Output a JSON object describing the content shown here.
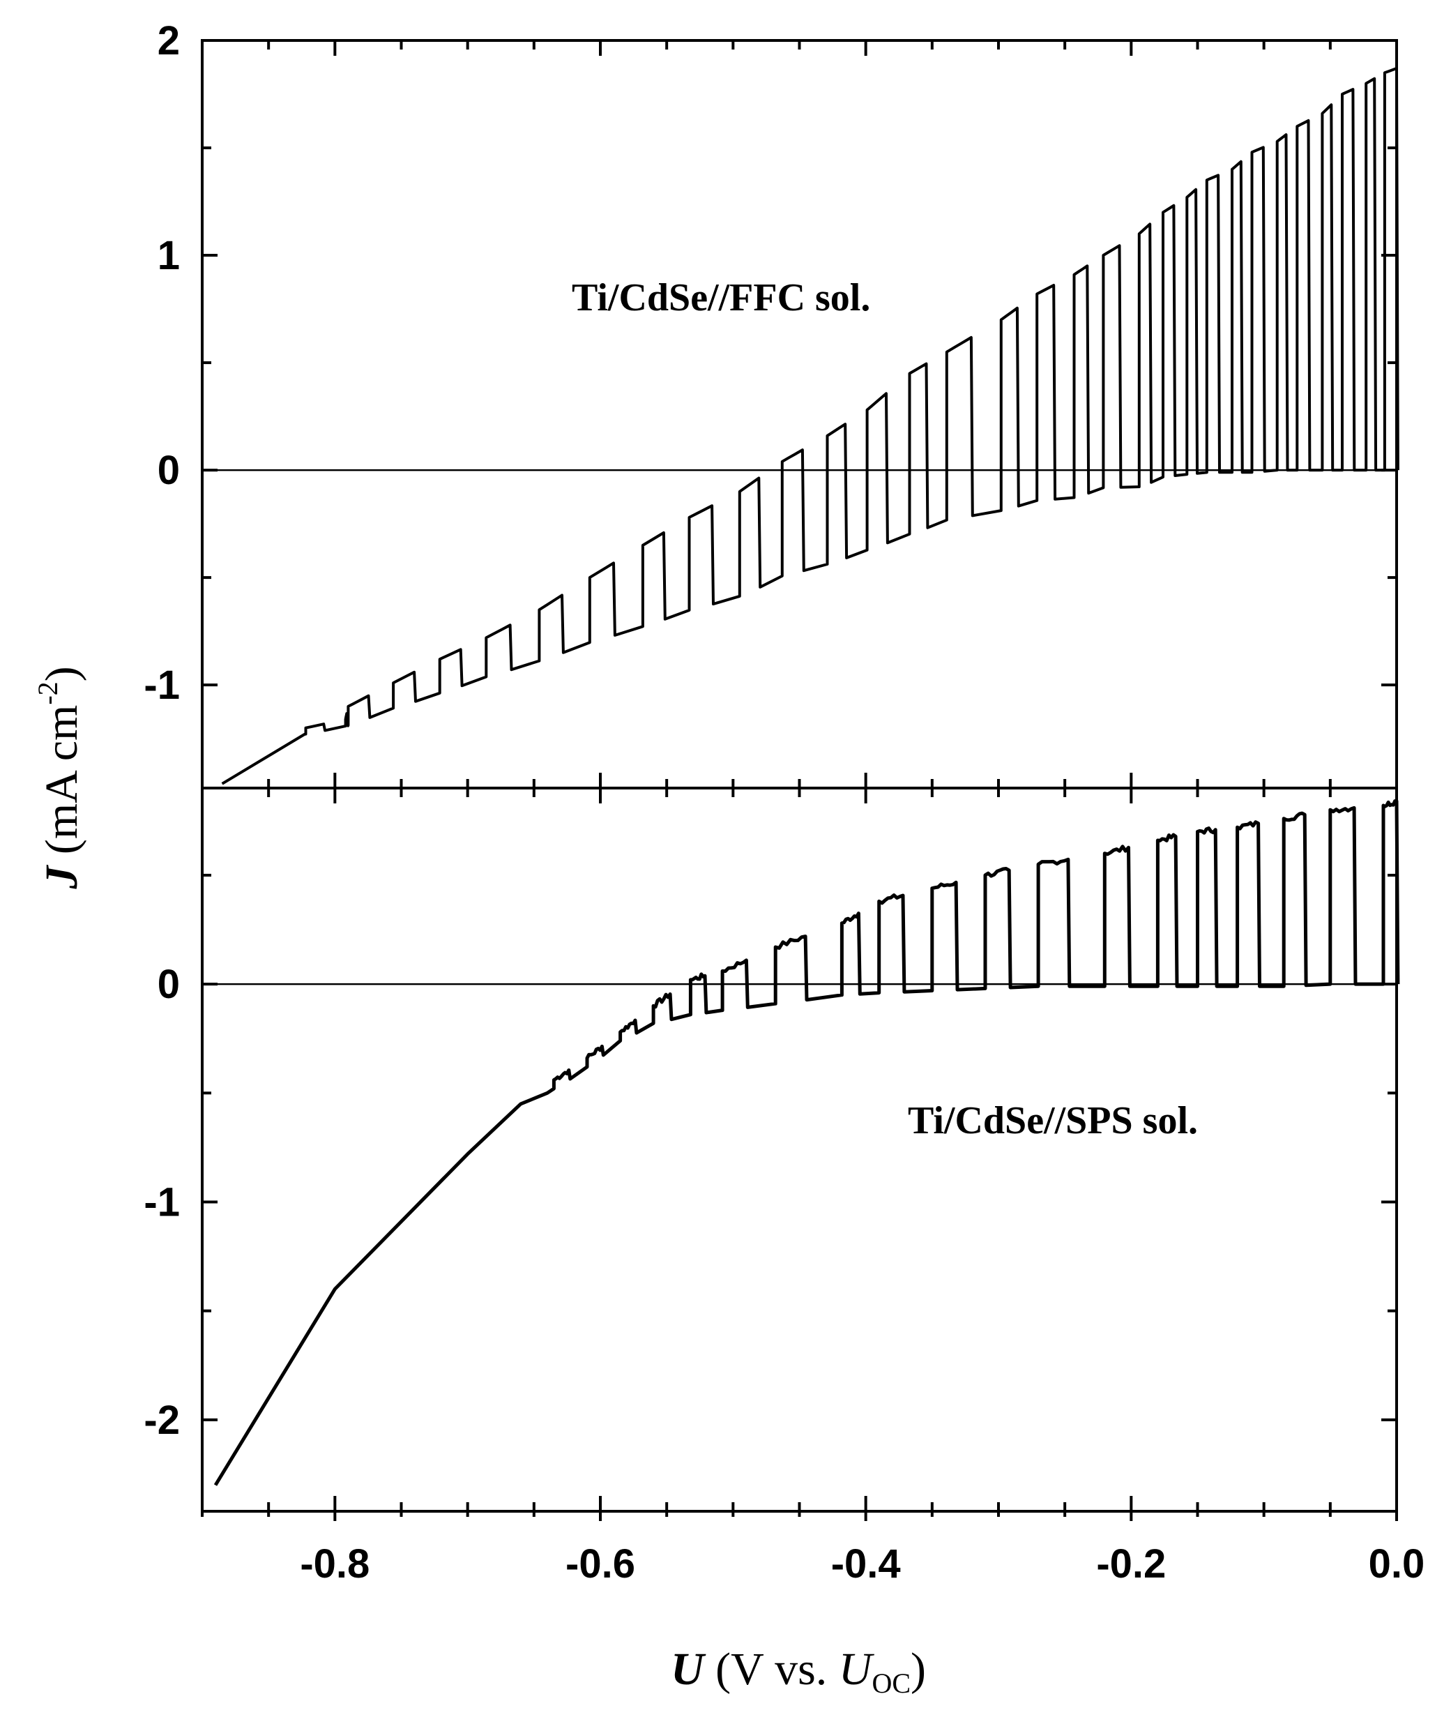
{
  "chart_data": [
    {
      "type": "line",
      "panel": "top",
      "annotation": "Ti/CdSe//FFC sol.",
      "xlim": [
        -0.9,
        0.0
      ],
      "ylim": [
        -1.48,
        2.0
      ],
      "yticks": [
        {
          "value": 2,
          "label": "2"
        },
        {
          "value": 1,
          "label": "1"
        },
        {
          "value": 0,
          "label": "0"
        },
        {
          "value": -1,
          "label": "-1"
        }
      ],
      "reference_line": 0,
      "grid": false,
      "series": [
        {
          "dark": [
            [
              -0.885,
              -1.46
            ],
            [
              -0.823,
              -1.23
            ],
            [
              -0.791,
              -1.19
            ],
            [
              -0.757,
              -1.11
            ],
            [
              -0.722,
              -1.04
            ],
            [
              -0.685,
              -0.96
            ],
            [
              -0.647,
              -0.89
            ],
            [
              -0.607,
              -0.8
            ],
            [
              -0.569,
              -0.73
            ],
            [
              -0.532,
              -0.65
            ],
            [
              -0.496,
              -0.59
            ],
            [
              -0.462,
              -0.49
            ],
            [
              -0.43,
              -0.44
            ],
            [
              -0.398,
              -0.37
            ],
            [
              -0.368,
              -0.3
            ],
            [
              -0.338,
              -0.23
            ],
            [
              -0.299,
              -0.19
            ],
            [
              -0.27,
              -0.14
            ],
            [
              -0.244,
              -0.13
            ],
            [
              -0.22,
              -0.08
            ],
            [
              -0.195,
              -0.08
            ],
            [
              -0.175,
              -0.03
            ],
            [
              -0.159,
              -0.02
            ],
            [
              -0.142,
              -0.01
            ],
            [
              -0.125,
              -0.01
            ],
            [
              -0.108,
              -0.01
            ],
            [
              -0.091,
              0.0
            ],
            [
              -0.074,
              0.0
            ],
            [
              -0.057,
              0.0
            ],
            [
              -0.04,
              0.0
            ],
            [
              -0.024,
              0.0
            ],
            [
              -0.008,
              0.0
            ],
            [
              0.0,
              0.0
            ]
          ],
          "light": [
            [
              -0.822,
              -1.2
            ],
            [
              -0.792,
              -1.16
            ],
            [
              -0.79,
              -1.1
            ],
            [
              -0.756,
              -0.99
            ],
            [
              -0.721,
              -0.88
            ],
            [
              -0.686,
              -0.78
            ],
            [
              -0.646,
              -0.65
            ],
            [
              -0.608,
              -0.5
            ],
            [
              -0.568,
              -0.35
            ],
            [
              -0.533,
              -0.22
            ],
            [
              -0.495,
              -0.1
            ],
            [
              -0.463,
              0.04
            ],
            [
              -0.429,
              0.16
            ],
            [
              -0.399,
              0.28
            ],
            [
              -0.367,
              0.45
            ],
            [
              -0.339,
              0.55
            ],
            [
              -0.298,
              0.7
            ],
            [
              -0.271,
              0.82
            ],
            [
              -0.243,
              0.91
            ],
            [
              -0.221,
              1.0
            ],
            [
              -0.194,
              1.1
            ],
            [
              -0.176,
              1.2
            ],
            [
              -0.158,
              1.27
            ],
            [
              -0.143,
              1.35
            ],
            [
              -0.124,
              1.4
            ],
            [
              -0.109,
              1.48
            ],
            [
              -0.09,
              1.53
            ],
            [
              -0.075,
              1.6
            ],
            [
              -0.056,
              1.66
            ],
            [
              -0.041,
              1.75
            ],
            [
              -0.023,
              1.8
            ],
            [
              -0.009,
              1.85
            ]
          ]
        }
      ]
    },
    {
      "type": "line",
      "panel": "bottom",
      "annotation": "Ti/CdSe//SPS sol.",
      "xlim": [
        -0.9,
        0.0
      ],
      "ylim": [
        -2.42,
        0.9
      ],
      "xticks": [
        {
          "value": -0.8,
          "label": "-0.8"
        },
        {
          "value": -0.6,
          "label": "-0.6"
        },
        {
          "value": -0.4,
          "label": "-0.4"
        },
        {
          "value": -0.2,
          "label": "-0.2"
        },
        {
          "value": 0.0,
          "label": "0.0"
        }
      ],
      "yticks": [
        {
          "value": 0,
          "label": "0"
        },
        {
          "value": -1,
          "label": "-1"
        },
        {
          "value": -2,
          "label": "-2"
        }
      ],
      "reference_line": 0,
      "grid": false,
      "series": [
        {
          "dark": [
            [
              -0.89,
              -2.3
            ],
            [
              -0.8,
              -1.4
            ],
            [
              -0.7,
              -0.78
            ],
            [
              -0.66,
              -0.55
            ],
            [
              -0.64,
              -0.5
            ],
            [
              -0.61,
              -0.38
            ],
            [
              -0.585,
              -0.26
            ],
            [
              -0.56,
              -0.18
            ],
            [
              -0.532,
              -0.14
            ],
            [
              -0.508,
              -0.12
            ],
            [
              -0.468,
              -0.09
            ],
            [
              -0.418,
              -0.05
            ],
            [
              -0.39,
              -0.04
            ],
            [
              -0.35,
              -0.03
            ],
            [
              -0.31,
              -0.02
            ],
            [
              -0.27,
              -0.01
            ],
            [
              -0.22,
              -0.01
            ],
            [
              -0.18,
              -0.01
            ],
            [
              -0.15,
              -0.01
            ],
            [
              -0.12,
              -0.01
            ],
            [
              -0.085,
              -0.01
            ],
            [
              -0.05,
              0.0
            ],
            [
              -0.01,
              0.0
            ],
            [
              0.0,
              0.0
            ]
          ],
          "light": [
            [
              -0.635,
              -0.44
            ],
            [
              -0.61,
              -0.34
            ],
            [
              -0.585,
              -0.22
            ],
            [
              -0.56,
              -0.1
            ],
            [
              -0.532,
              0.02
            ],
            [
              -0.508,
              0.06
            ],
            [
              -0.468,
              0.17
            ],
            [
              -0.418,
              0.28
            ],
            [
              -0.39,
              0.38
            ],
            [
              -0.35,
              0.44
            ],
            [
              -0.31,
              0.5
            ],
            [
              -0.27,
              0.55
            ],
            [
              -0.22,
              0.6
            ],
            [
              -0.18,
              0.66
            ],
            [
              -0.15,
              0.7
            ],
            [
              -0.12,
              0.72
            ],
            [
              -0.085,
              0.76
            ],
            [
              -0.05,
              0.8
            ],
            [
              -0.01,
              0.82
            ]
          ]
        }
      ]
    }
  ],
  "axes": {
    "y_title": {
      "symbol": "J",
      "unit_open": " (mA cm",
      "exponent": "-2",
      "unit_close": ")"
    },
    "x_title": {
      "symbol": "U",
      "middle": " (V vs. ",
      "symbol2": "U",
      "subscript": "OC",
      "close": ")"
    }
  }
}
